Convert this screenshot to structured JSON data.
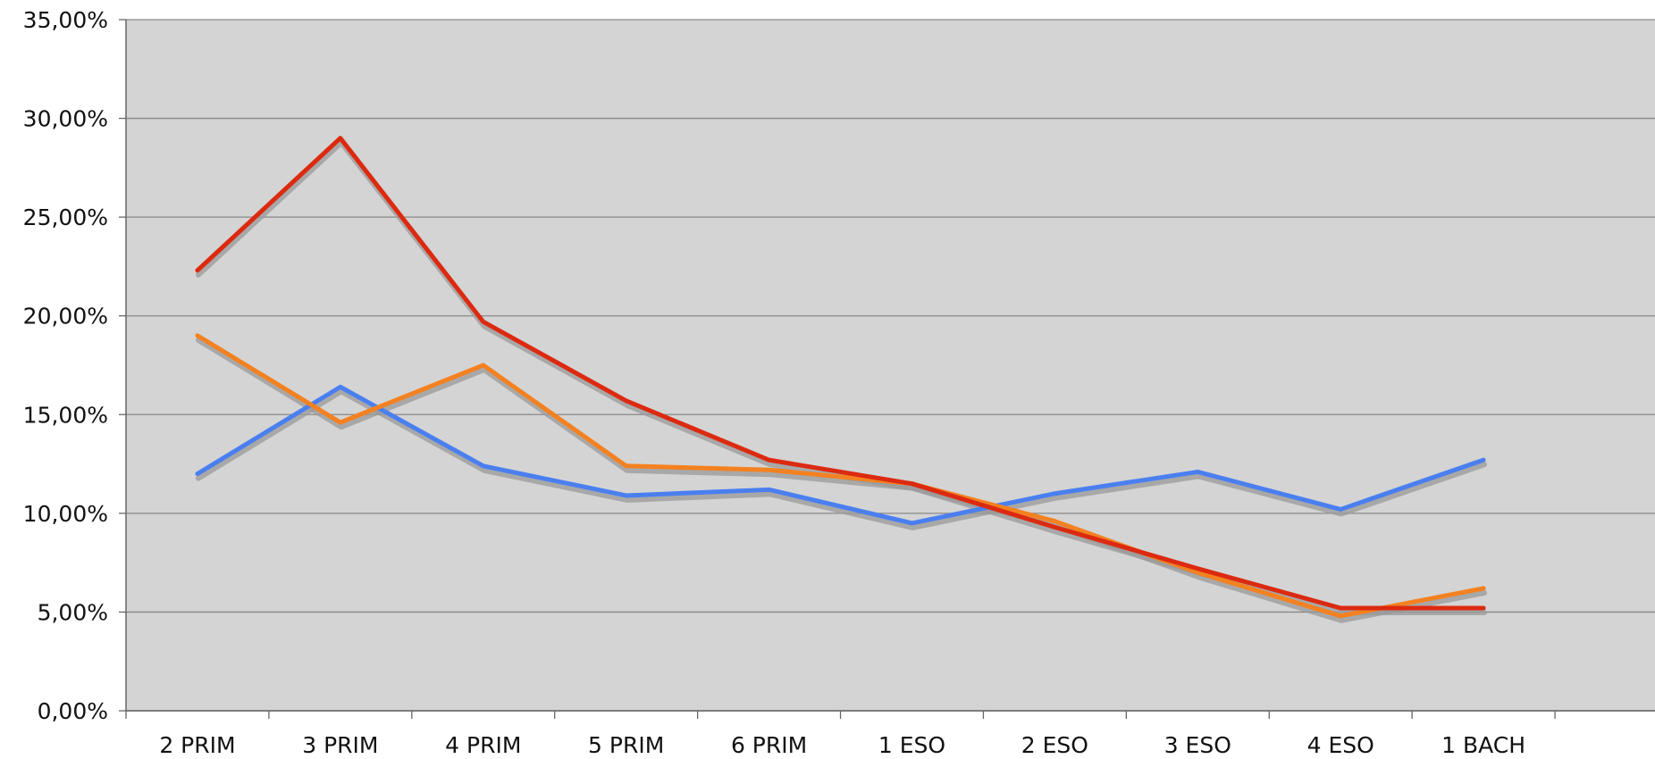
{
  "chart_data": {
    "type": "line",
    "title": "",
    "xlabel": "",
    "ylabel": "",
    "categories": [
      "2 PRIM",
      "3 PRIM",
      "4 PRIM",
      "5 PRIM",
      "6 PRIM",
      "1 ESO",
      "2 ESO",
      "3 ESO",
      "4 ESO",
      "1 BACH"
    ],
    "y_tick_labels": [
      "0,00%",
      "5,00%",
      "10,00%",
      "15,00%",
      "20,00%",
      "25,00%",
      "30,00%",
      "35,00%"
    ],
    "ylim": [
      0,
      35
    ],
    "y_unit": "percent",
    "grid": true,
    "legend": "none",
    "plot_background": "#d4d4d4",
    "shadow_color": "#9a9a9a",
    "series": [
      {
        "color": "#4a7ff0",
        "values": [
          12.0,
          16.4,
          12.4,
          10.9,
          11.2,
          9.5,
          11.0,
          12.1,
          10.2,
          12.7
        ]
      },
      {
        "color": "#f48120",
        "values": [
          19.0,
          14.6,
          17.5,
          12.4,
          12.2,
          11.5,
          9.6,
          7.0,
          4.8,
          6.2
        ]
      },
      {
        "color": "#dc2a10",
        "values": [
          22.3,
          29.0,
          19.7,
          15.7,
          12.7,
          11.5,
          9.3,
          7.2,
          5.2,
          5.2
        ]
      }
    ]
  }
}
